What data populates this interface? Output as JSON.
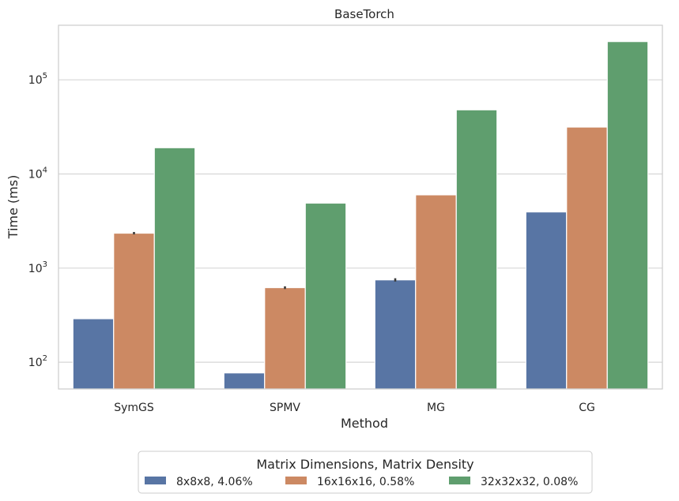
{
  "chart_data": {
    "type": "bar",
    "title": "BaseTorch",
    "xlabel": "Method",
    "ylabel": "Time (ms)",
    "yscale": "log",
    "ylim": [
      52,
      380000
    ],
    "grid": "horizontal",
    "categories": [
      "SymGS",
      "SPMV",
      "MG",
      "CG"
    ],
    "series": [
      {
        "name": "8x8x8, 4.06%",
        "color": "#5875a4",
        "values": [
          290,
          77,
          750,
          3950
        ],
        "error_bars": [
          null,
          null,
          [
            720,
            780
          ],
          null
        ]
      },
      {
        "name": "16x16x16, 0.58%",
        "color": "#cc8963",
        "values": [
          2350,
          620,
          6000,
          31500
        ],
        "error_bars": [
          [
            2280,
            2420
          ],
          [
            600,
            640
          ],
          null,
          null
        ]
      },
      {
        "name": "32x32x32, 0.08%",
        "color": "#5f9e6e",
        "values": [
          19000,
          4900,
          48000,
          255000
        ],
        "error_bars": [
          null,
          null,
          null,
          null
        ]
      }
    ],
    "yticks": [
      {
        "value": 100,
        "base": "10",
        "exp": "2"
      },
      {
        "value": 1000,
        "base": "10",
        "exp": "3"
      },
      {
        "value": 10000,
        "base": "10",
        "exp": "4"
      },
      {
        "value": 100000,
        "base": "10",
        "exp": "5"
      }
    ],
    "legend": {
      "title": "Matrix Dimensions, Matrix Density",
      "placement": "bottom-center"
    }
  }
}
